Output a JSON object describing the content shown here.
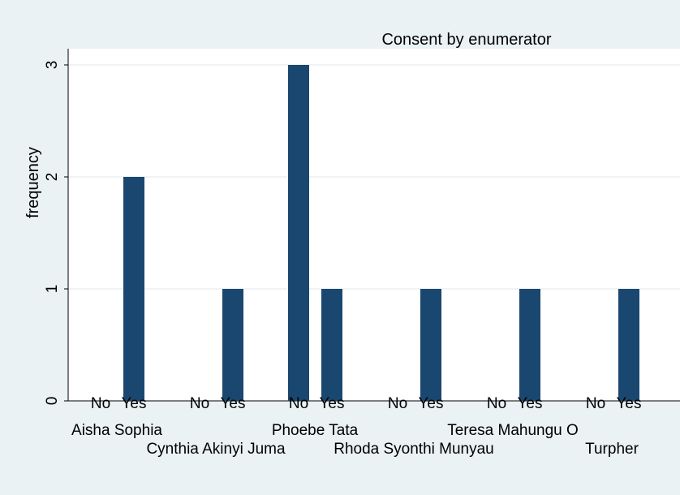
{
  "chart_data": {
    "type": "bar",
    "title": "Consent by enumerator",
    "ylabel": "frequency",
    "xlabel": "",
    "ylim": [
      0,
      3
    ],
    "yticks": [
      "0",
      "1",
      "2",
      "3"
    ],
    "groups": [
      "Aisha Sophia",
      "Cynthia Akinyi Juma",
      "Phoebe Tata",
      "Rhoda Syonthi Munyau",
      "Teresa Mahungu O",
      "Turpher"
    ],
    "subcategories": [
      "No",
      "Yes"
    ],
    "values": [
      [
        0,
        2
      ],
      [
        0,
        1
      ],
      [
        3,
        1
      ],
      [
        0,
        1
      ],
      [
        0,
        1
      ],
      [
        0,
        1
      ]
    ],
    "grid": true,
    "bar_color": "#1a476f",
    "background": "#eaf2f3",
    "plot_background": "#ffffff"
  }
}
